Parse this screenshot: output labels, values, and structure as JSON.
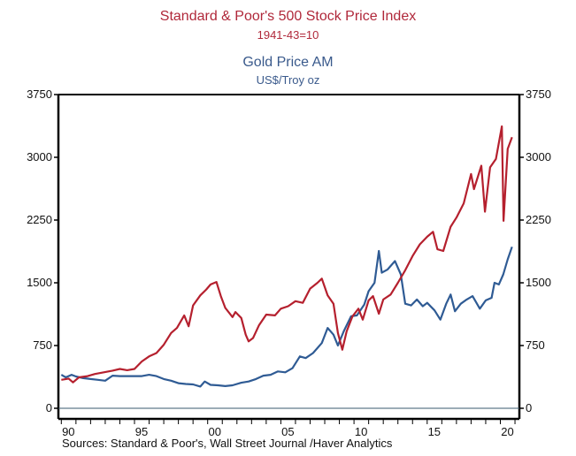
{
  "chart_data": {
    "type": "line",
    "titles": [
      {
        "text": "Standard & Poor's 500 Stock Price Index",
        "color": "#b0283a"
      },
      {
        "text": "1941-43=10",
        "color": "#b0283a"
      },
      {
        "text": "Gold Price AM",
        "color": "#3a5a8c"
      },
      {
        "text": "US$/Troy oz",
        "color": "#3a5a8c"
      }
    ],
    "source": "Sources:  Standard & Poor's, Wall Street Journal /Haver Analytics",
    "xlim": [
      1989.8,
      2021.3
    ],
    "ylim": [
      0,
      3750
    ],
    "x_ticks": [
      {
        "year": 1990,
        "label": "90"
      },
      {
        "year": 1995,
        "label": "95"
      },
      {
        "year": 2000,
        "label": "00"
      },
      {
        "year": 2005,
        "label": "05"
      },
      {
        "year": 2010,
        "label": "10"
      },
      {
        "year": 2015,
        "label": "15"
      },
      {
        "year": 2020,
        "label": "20"
      }
    ],
    "y_ticks_left": [
      0,
      750,
      1500,
      2250,
      3000,
      3750
    ],
    "y_ticks_right": [
      0,
      750,
      1500,
      2250,
      3000,
      3750
    ],
    "series": [
      {
        "name": "S&P 500",
        "color": "#b5202e",
        "points": [
          [
            1990.0,
            340
          ],
          [
            1990.5,
            355
          ],
          [
            1990.8,
            310
          ],
          [
            1991.2,
            370
          ],
          [
            1991.8,
            385
          ],
          [
            1992.3,
            410
          ],
          [
            1992.9,
            430
          ],
          [
            1993.5,
            450
          ],
          [
            1994.0,
            470
          ],
          [
            1994.5,
            455
          ],
          [
            1995.0,
            470
          ],
          [
            1995.5,
            560
          ],
          [
            1996.0,
            620
          ],
          [
            1996.5,
            660
          ],
          [
            1997.0,
            760
          ],
          [
            1997.5,
            900
          ],
          [
            1997.9,
            960
          ],
          [
            1998.4,
            1110
          ],
          [
            1998.7,
            980
          ],
          [
            1999.0,
            1230
          ],
          [
            1999.5,
            1350
          ],
          [
            1999.9,
            1420
          ],
          [
            2000.2,
            1480
          ],
          [
            2000.6,
            1510
          ],
          [
            2000.9,
            1340
          ],
          [
            2001.2,
            1200
          ],
          [
            2001.7,
            1090
          ],
          [
            2001.9,
            1150
          ],
          [
            2002.3,
            1080
          ],
          [
            2002.6,
            880
          ],
          [
            2002.8,
            800
          ],
          [
            2003.1,
            840
          ],
          [
            2003.5,
            990
          ],
          [
            2004.0,
            1120
          ],
          [
            2004.6,
            1110
          ],
          [
            2005.0,
            1190
          ],
          [
            2005.5,
            1220
          ],
          [
            2006.0,
            1280
          ],
          [
            2006.5,
            1260
          ],
          [
            2007.0,
            1430
          ],
          [
            2007.5,
            1500
          ],
          [
            2007.8,
            1550
          ],
          [
            2008.2,
            1350
          ],
          [
            2008.6,
            1250
          ],
          [
            2008.9,
            900
          ],
          [
            2009.2,
            700
          ],
          [
            2009.5,
            920
          ],
          [
            2009.9,
            1100
          ],
          [
            2010.3,
            1190
          ],
          [
            2010.6,
            1060
          ],
          [
            2011.0,
            1290
          ],
          [
            2011.3,
            1340
          ],
          [
            2011.7,
            1130
          ],
          [
            2012.0,
            1300
          ],
          [
            2012.5,
            1360
          ],
          [
            2013.0,
            1500
          ],
          [
            2013.5,
            1650
          ],
          [
            2014.0,
            1820
          ],
          [
            2014.5,
            1960
          ],
          [
            2015.0,
            2050
          ],
          [
            2015.4,
            2110
          ],
          [
            2015.7,
            1900
          ],
          [
            2016.1,
            1880
          ],
          [
            2016.6,
            2170
          ],
          [
            2017.0,
            2280
          ],
          [
            2017.5,
            2450
          ],
          [
            2018.0,
            2800
          ],
          [
            2018.2,
            2620
          ],
          [
            2018.7,
            2900
          ],
          [
            2018.95,
            2350
          ],
          [
            2019.3,
            2880
          ],
          [
            2019.7,
            2980
          ],
          [
            2020.1,
            3370
          ],
          [
            2020.22,
            2240
          ],
          [
            2020.5,
            3100
          ],
          [
            2020.8,
            3240
          ]
        ]
      },
      {
        "name": "Gold Price AM",
        "color": "#2f5b94",
        "points": [
          [
            1990.0,
            400
          ],
          [
            1990.3,
            370
          ],
          [
            1990.7,
            400
          ],
          [
            1991.0,
            380
          ],
          [
            1991.5,
            360
          ],
          [
            1992.0,
            350
          ],
          [
            1992.5,
            340
          ],
          [
            1993.0,
            330
          ],
          [
            1993.5,
            390
          ],
          [
            1994.0,
            385
          ],
          [
            1994.5,
            385
          ],
          [
            1995.0,
            385
          ],
          [
            1995.5,
            385
          ],
          [
            1996.0,
            400
          ],
          [
            1996.5,
            385
          ],
          [
            1997.0,
            350
          ],
          [
            1997.5,
            330
          ],
          [
            1998.0,
            300
          ],
          [
            1998.5,
            290
          ],
          [
            1999.0,
            285
          ],
          [
            1999.5,
            260
          ],
          [
            1999.8,
            320
          ],
          [
            2000.2,
            280
          ],
          [
            2000.7,
            275
          ],
          [
            2001.2,
            265
          ],
          [
            2001.7,
            275
          ],
          [
            2002.3,
            305
          ],
          [
            2002.8,
            320
          ],
          [
            2003.3,
            350
          ],
          [
            2003.8,
            390
          ],
          [
            2004.3,
            400
          ],
          [
            2004.8,
            440
          ],
          [
            2005.3,
            430
          ],
          [
            2005.8,
            480
          ],
          [
            2006.3,
            620
          ],
          [
            2006.7,
            600
          ],
          [
            2007.2,
            660
          ],
          [
            2007.8,
            780
          ],
          [
            2008.2,
            960
          ],
          [
            2008.6,
            880
          ],
          [
            2008.9,
            750
          ],
          [
            2009.3,
            920
          ],
          [
            2009.8,
            1100
          ],
          [
            2010.2,
            1110
          ],
          [
            2010.7,
            1240
          ],
          [
            2011.0,
            1400
          ],
          [
            2011.4,
            1500
          ],
          [
            2011.7,
            1880
          ],
          [
            2011.9,
            1620
          ],
          [
            2012.3,
            1660
          ],
          [
            2012.8,
            1760
          ],
          [
            2013.2,
            1600
          ],
          [
            2013.5,
            1250
          ],
          [
            2013.9,
            1230
          ],
          [
            2014.3,
            1300
          ],
          [
            2014.7,
            1220
          ],
          [
            2015.0,
            1260
          ],
          [
            2015.5,
            1170
          ],
          [
            2015.9,
            1060
          ],
          [
            2016.3,
            1250
          ],
          [
            2016.6,
            1360
          ],
          [
            2016.9,
            1160
          ],
          [
            2017.3,
            1250
          ],
          [
            2017.7,
            1300
          ],
          [
            2018.1,
            1340
          ],
          [
            2018.6,
            1190
          ],
          [
            2019.0,
            1290
          ],
          [
            2019.4,
            1320
          ],
          [
            2019.6,
            1500
          ],
          [
            2019.9,
            1480
          ],
          [
            2020.2,
            1600
          ],
          [
            2020.5,
            1780
          ],
          [
            2020.8,
            1930
          ]
        ]
      }
    ]
  }
}
